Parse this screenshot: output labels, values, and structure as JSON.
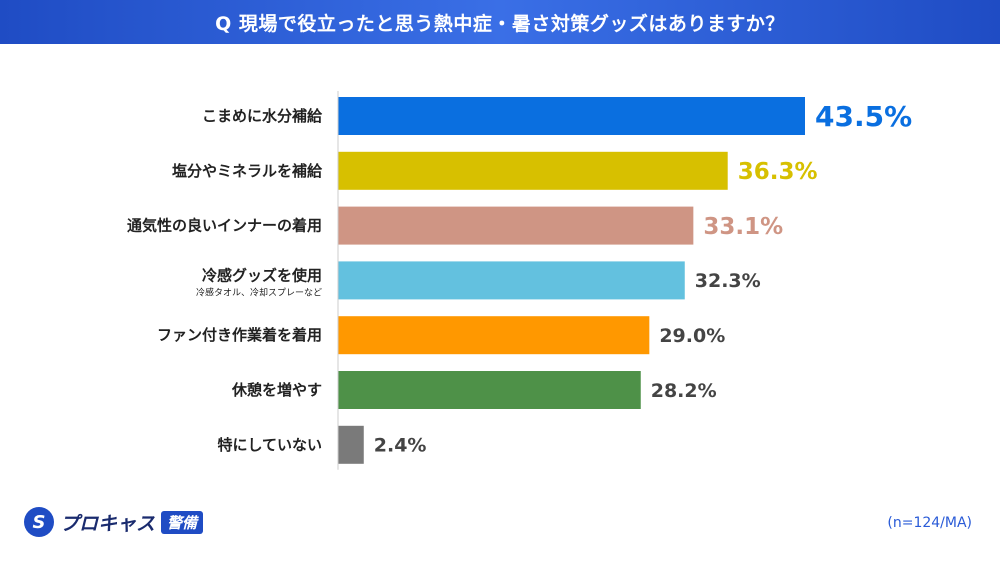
{
  "header": {
    "title": "Q 現場で役立ったと思う熱中症・暑さ対策グッズはありますか？"
  },
  "chart_data": {
    "type": "bar",
    "orientation": "horizontal",
    "categories": [
      "こまめに水分補給",
      "塩分やミネラルを補給",
      "通気性の良いインナーの着用",
      "冷感グッズを使用",
      "ファン付き作業着を着用",
      "休憩を増やす",
      "特にしていない"
    ],
    "sub_labels": [
      "",
      "",
      "",
      "冷感タオル、冷却スプレーなど",
      "",
      "",
      ""
    ],
    "values": [
      43.5,
      36.3,
      33.1,
      32.3,
      29.0,
      28.2,
      2.4
    ],
    "value_labels": [
      "43.5%",
      "36.3%",
      "33.1%",
      "32.3%",
      "29.0%",
      "28.2%",
      "2.4%"
    ],
    "colors": [
      "#0a6fe0",
      "#d7c000",
      "#cf9584",
      "#63c1df",
      "#ff9800",
      "#4e9148",
      "#7a7a7a"
    ],
    "label_colors": [
      "#0a6fe0",
      "#d7c000",
      "#cf9584",
      "#444444",
      "#444444",
      "#444444",
      "#444444"
    ],
    "xlim": [
      0,
      43.5
    ]
  },
  "footer": {
    "logo_text": "プロキャス",
    "logo_badge": "警備",
    "note": "(n=124/MA)"
  }
}
